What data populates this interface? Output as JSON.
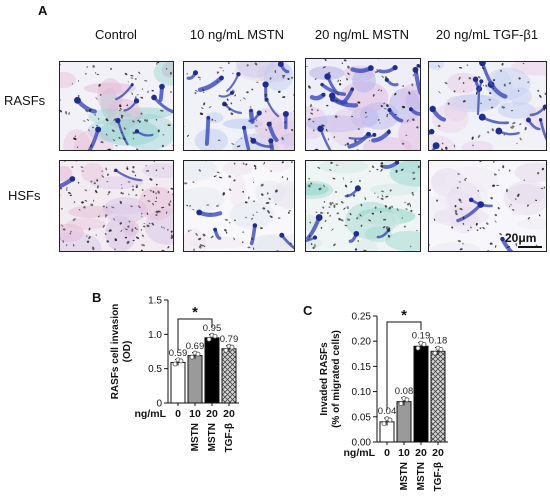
{
  "panelA": {
    "label": "A",
    "columns": [
      "Control",
      "10 ng/mL MSTN",
      "20 ng/mL MSTN",
      "20 ng/mL TGF-β1"
    ],
    "rows": [
      "RASFs",
      "HSFs"
    ],
    "scale_label": "20μm"
  },
  "chart_data": [
    {
      "panel": "B",
      "type": "bar",
      "categories": [
        "0",
        "10",
        "20",
        "20"
      ],
      "category_labels": [
        "",
        "MSTN",
        "MSTN",
        "TGF-β"
      ],
      "xlabel_prefix": "ng/mL",
      "values": [
        0.59,
        0.69,
        0.95,
        0.79
      ],
      "value_labels": [
        "0.59",
        "0.69",
        "0.95",
        "0.79"
      ],
      "ylabel": "RASFs cell invasion\n(OD)",
      "ylim": [
        0,
        1.5
      ],
      "yticks": [
        "0",
        "0.5",
        "1.0",
        "1.5"
      ],
      "significance": {
        "from": 0,
        "to": 2,
        "label": "*"
      },
      "colors": [
        "#ffffff",
        "#9a9a9a",
        "#000000",
        "#bdbdbd"
      ]
    },
    {
      "panel": "C",
      "type": "bar",
      "categories": [
        "0",
        "10",
        "20",
        "20"
      ],
      "category_labels": [
        "",
        "MSTN",
        "MSTN",
        "TGF-β"
      ],
      "xlabel_prefix": "ng/mL",
      "values": [
        0.04,
        0.08,
        0.19,
        0.18
      ],
      "value_labels": [
        "0.04",
        "0.08",
        "0.19",
        "0.18"
      ],
      "ylabel": "Invaded RASFs\n(% of migrated cells)",
      "ylim": [
        0,
        0.25
      ],
      "yticks": [
        "0.00",
        "0.05",
        "0.10",
        "0.15",
        "0.20",
        "0.25"
      ],
      "significance": {
        "from": 0,
        "to": 2,
        "label": "*"
      },
      "colors": [
        "#ffffff",
        "#9a9a9a",
        "#000000",
        "#bdbdbd"
      ]
    }
  ]
}
